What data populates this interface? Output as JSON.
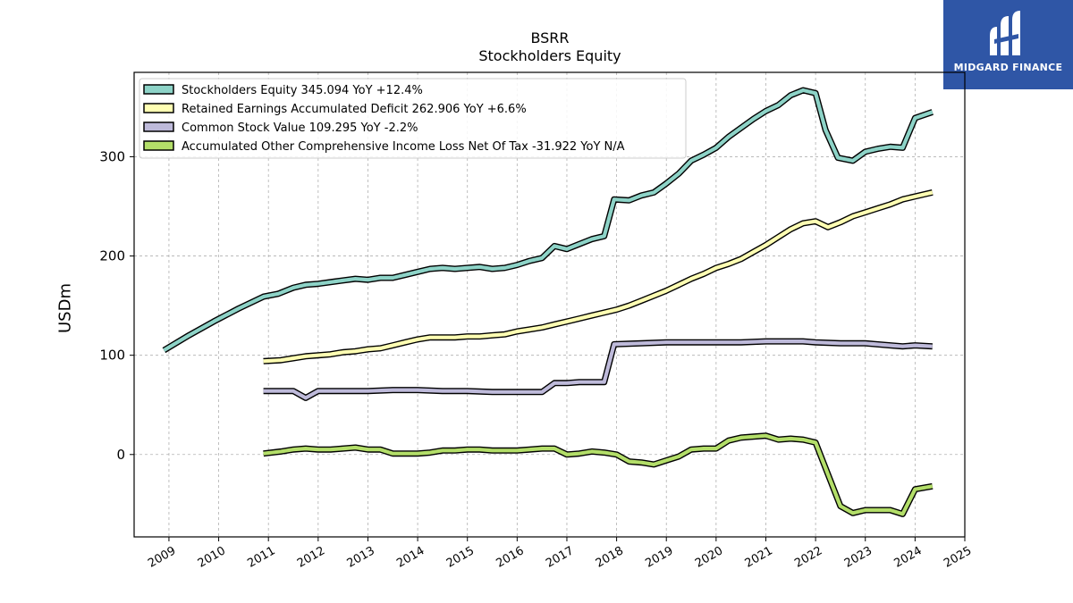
{
  "header": {
    "ticker": "BSRR",
    "subtitle": "Stockholders  Equity"
  },
  "brand": {
    "name": "MIDGARD FINANCE",
    "color": "#2f56a6"
  },
  "chart_data": {
    "type": "line",
    "ylabel": "USDm",
    "xlim": [
      2008.3,
      2025.0
    ],
    "ylim": [
      -83,
      385
    ],
    "x_ticks": [
      2009,
      2010,
      2011,
      2012,
      2013,
      2014,
      2015,
      2016,
      2017,
      2018,
      2019,
      2020,
      2021,
      2022,
      2023,
      2024,
      2025
    ],
    "y_ticks": [
      0,
      100,
      200,
      300
    ],
    "grid": true,
    "legend_position": "top-left",
    "series": [
      {
        "name": "Stockholders Equity",
        "legend": "Stockholders Equity  345.094 YoY +12.4%",
        "color": "#8dd3c7",
        "points": [
          [
            2008.9,
            105
          ],
          [
            2009.4,
            120
          ],
          [
            2009.9,
            134
          ],
          [
            2010.4,
            147
          ],
          [
            2010.9,
            159
          ],
          [
            2011.2,
            162
          ],
          [
            2011.5,
            168
          ],
          [
            2011.75,
            171
          ],
          [
            2012.0,
            172
          ],
          [
            2012.3,
            174
          ],
          [
            2012.75,
            177
          ],
          [
            2013.0,
            176
          ],
          [
            2013.25,
            178
          ],
          [
            2013.5,
            178
          ],
          [
            2013.75,
            181
          ],
          [
            2014.0,
            184
          ],
          [
            2014.25,
            187
          ],
          [
            2014.5,
            188
          ],
          [
            2014.75,
            187
          ],
          [
            2015.0,
            188
          ],
          [
            2015.25,
            189
          ],
          [
            2015.5,
            187
          ],
          [
            2015.75,
            188
          ],
          [
            2016.0,
            191
          ],
          [
            2016.25,
            195
          ],
          [
            2016.5,
            198
          ],
          [
            2016.75,
            210
          ],
          [
            2017.0,
            207
          ],
          [
            2017.25,
            212
          ],
          [
            2017.5,
            217
          ],
          [
            2017.75,
            220
          ],
          [
            2017.95,
            257
          ],
          [
            2018.25,
            256
          ],
          [
            2018.5,
            261
          ],
          [
            2018.75,
            264
          ],
          [
            2019.0,
            273
          ],
          [
            2019.25,
            283
          ],
          [
            2019.5,
            296
          ],
          [
            2019.75,
            302
          ],
          [
            2020.0,
            309
          ],
          [
            2020.25,
            320
          ],
          [
            2020.5,
            329
          ],
          [
            2020.75,
            338
          ],
          [
            2021.0,
            346
          ],
          [
            2021.25,
            352
          ],
          [
            2021.5,
            362
          ],
          [
            2021.75,
            367
          ],
          [
            2022.0,
            364
          ],
          [
            2022.2,
            327
          ],
          [
            2022.45,
            299
          ],
          [
            2022.75,
            296
          ],
          [
            2023.0,
            305
          ],
          [
            2023.25,
            308
          ],
          [
            2023.5,
            310
          ],
          [
            2023.75,
            309
          ],
          [
            2024.0,
            339
          ],
          [
            2024.35,
            345
          ]
        ]
      },
      {
        "name": "Retained Earnings Accumulated Deficit",
        "legend": "Retained Earnings Accumulated Deficit  262.906 YoY +6.6%",
        "color": "#ffffb3",
        "points": [
          [
            2010.9,
            94
          ],
          [
            2011.25,
            95
          ],
          [
            2011.5,
            97
          ],
          [
            2011.75,
            99
          ],
          [
            2012.0,
            100
          ],
          [
            2012.25,
            101
          ],
          [
            2012.5,
            103
          ],
          [
            2012.75,
            104
          ],
          [
            2013.0,
            106
          ],
          [
            2013.25,
            107
          ],
          [
            2013.5,
            110
          ],
          [
            2013.75,
            113
          ],
          [
            2014.0,
            116
          ],
          [
            2014.25,
            118
          ],
          [
            2014.5,
            118
          ],
          [
            2014.75,
            118
          ],
          [
            2015.0,
            119
          ],
          [
            2015.25,
            119
          ],
          [
            2015.5,
            120
          ],
          [
            2015.75,
            121
          ],
          [
            2016.0,
            124
          ],
          [
            2016.25,
            126
          ],
          [
            2016.5,
            128
          ],
          [
            2016.75,
            131
          ],
          [
            2017.0,
            134
          ],
          [
            2017.25,
            137
          ],
          [
            2017.5,
            140
          ],
          [
            2017.75,
            143
          ],
          [
            2018.0,
            146
          ],
          [
            2018.25,
            150
          ],
          [
            2018.5,
            155
          ],
          [
            2018.75,
            160
          ],
          [
            2019.0,
            165
          ],
          [
            2019.25,
            171
          ],
          [
            2019.5,
            177
          ],
          [
            2019.75,
            182
          ],
          [
            2020.0,
            188
          ],
          [
            2020.25,
            192
          ],
          [
            2020.5,
            197
          ],
          [
            2020.75,
            204
          ],
          [
            2021.0,
            211
          ],
          [
            2021.25,
            219
          ],
          [
            2021.5,
            227
          ],
          [
            2021.75,
            233
          ],
          [
            2022.0,
            235
          ],
          [
            2022.25,
            229
          ],
          [
            2022.5,
            234
          ],
          [
            2022.75,
            240
          ],
          [
            2023.0,
            244
          ],
          [
            2023.25,
            248
          ],
          [
            2023.5,
            252
          ],
          [
            2023.75,
            257
          ],
          [
            2024.0,
            260
          ],
          [
            2024.35,
            264
          ]
        ]
      },
      {
        "name": "Common Stock Value",
        "legend": "Common Stock Value  109.295 YoY -2.2%",
        "color": "#bebada",
        "points": [
          [
            2010.9,
            64
          ],
          [
            2011.25,
            64
          ],
          [
            2011.5,
            64
          ],
          [
            2011.75,
            57
          ],
          [
            2012.0,
            64
          ],
          [
            2012.5,
            64
          ],
          [
            2013.0,
            64
          ],
          [
            2013.5,
            65
          ],
          [
            2014.0,
            65
          ],
          [
            2014.5,
            64
          ],
          [
            2015.0,
            64
          ],
          [
            2015.5,
            63
          ],
          [
            2016.0,
            63
          ],
          [
            2016.5,
            63
          ],
          [
            2016.75,
            72
          ],
          [
            2017.0,
            72
          ],
          [
            2017.25,
            73
          ],
          [
            2017.75,
            73
          ],
          [
            2017.95,
            111
          ],
          [
            2018.5,
            112
          ],
          [
            2019.0,
            113
          ],
          [
            2019.5,
            113
          ],
          [
            2020.0,
            113
          ],
          [
            2020.5,
            113
          ],
          [
            2021.0,
            114
          ],
          [
            2021.5,
            114
          ],
          [
            2021.75,
            114
          ],
          [
            2022.0,
            113
          ],
          [
            2022.5,
            112
          ],
          [
            2023.0,
            112
          ],
          [
            2023.5,
            110
          ],
          [
            2023.75,
            109
          ],
          [
            2024.0,
            110
          ],
          [
            2024.35,
            109
          ]
        ]
      },
      {
        "name": "Accumulated Other Comprehensive Income Loss Net Of Tax",
        "legend": "Accumulated Other Comprehensive Income Loss Net Of Tax  -31.922 YoY N/A",
        "color": "#b3de69",
        "points": [
          [
            2010.9,
            1
          ],
          [
            2011.25,
            3
          ],
          [
            2011.5,
            5
          ],
          [
            2011.75,
            6
          ],
          [
            2012.0,
            5
          ],
          [
            2012.25,
            5
          ],
          [
            2012.5,
            6
          ],
          [
            2012.75,
            7
          ],
          [
            2013.0,
            5
          ],
          [
            2013.25,
            5
          ],
          [
            2013.5,
            1
          ],
          [
            2013.75,
            1
          ],
          [
            2014.0,
            1
          ],
          [
            2014.25,
            2
          ],
          [
            2014.5,
            4
          ],
          [
            2014.75,
            4
          ],
          [
            2015.0,
            5
          ],
          [
            2015.25,
            5
          ],
          [
            2015.5,
            4
          ],
          [
            2015.75,
            4
          ],
          [
            2016.0,
            4
          ],
          [
            2016.25,
            5
          ],
          [
            2016.5,
            6
          ],
          [
            2016.75,
            6
          ],
          [
            2017.0,
            0
          ],
          [
            2017.25,
            1
          ],
          [
            2017.5,
            3
          ],
          [
            2017.75,
            2
          ],
          [
            2018.0,
            0
          ],
          [
            2018.25,
            -7
          ],
          [
            2018.5,
            -8
          ],
          [
            2018.75,
            -10
          ],
          [
            2019.0,
            -6
          ],
          [
            2019.25,
            -2
          ],
          [
            2019.5,
            5
          ],
          [
            2019.75,
            6
          ],
          [
            2020.0,
            6
          ],
          [
            2020.25,
            14
          ],
          [
            2020.5,
            17
          ],
          [
            2020.75,
            18
          ],
          [
            2021.0,
            19
          ],
          [
            2021.25,
            15
          ],
          [
            2021.5,
            16
          ],
          [
            2021.75,
            15
          ],
          [
            2022.0,
            12
          ],
          [
            2022.25,
            -20
          ],
          [
            2022.5,
            -52
          ],
          [
            2022.75,
            -59
          ],
          [
            2023.0,
            -56
          ],
          [
            2023.25,
            -56
          ],
          [
            2023.5,
            -56
          ],
          [
            2023.75,
            -60
          ],
          [
            2024.0,
            -35
          ],
          [
            2024.35,
            -32
          ]
        ]
      }
    ]
  }
}
